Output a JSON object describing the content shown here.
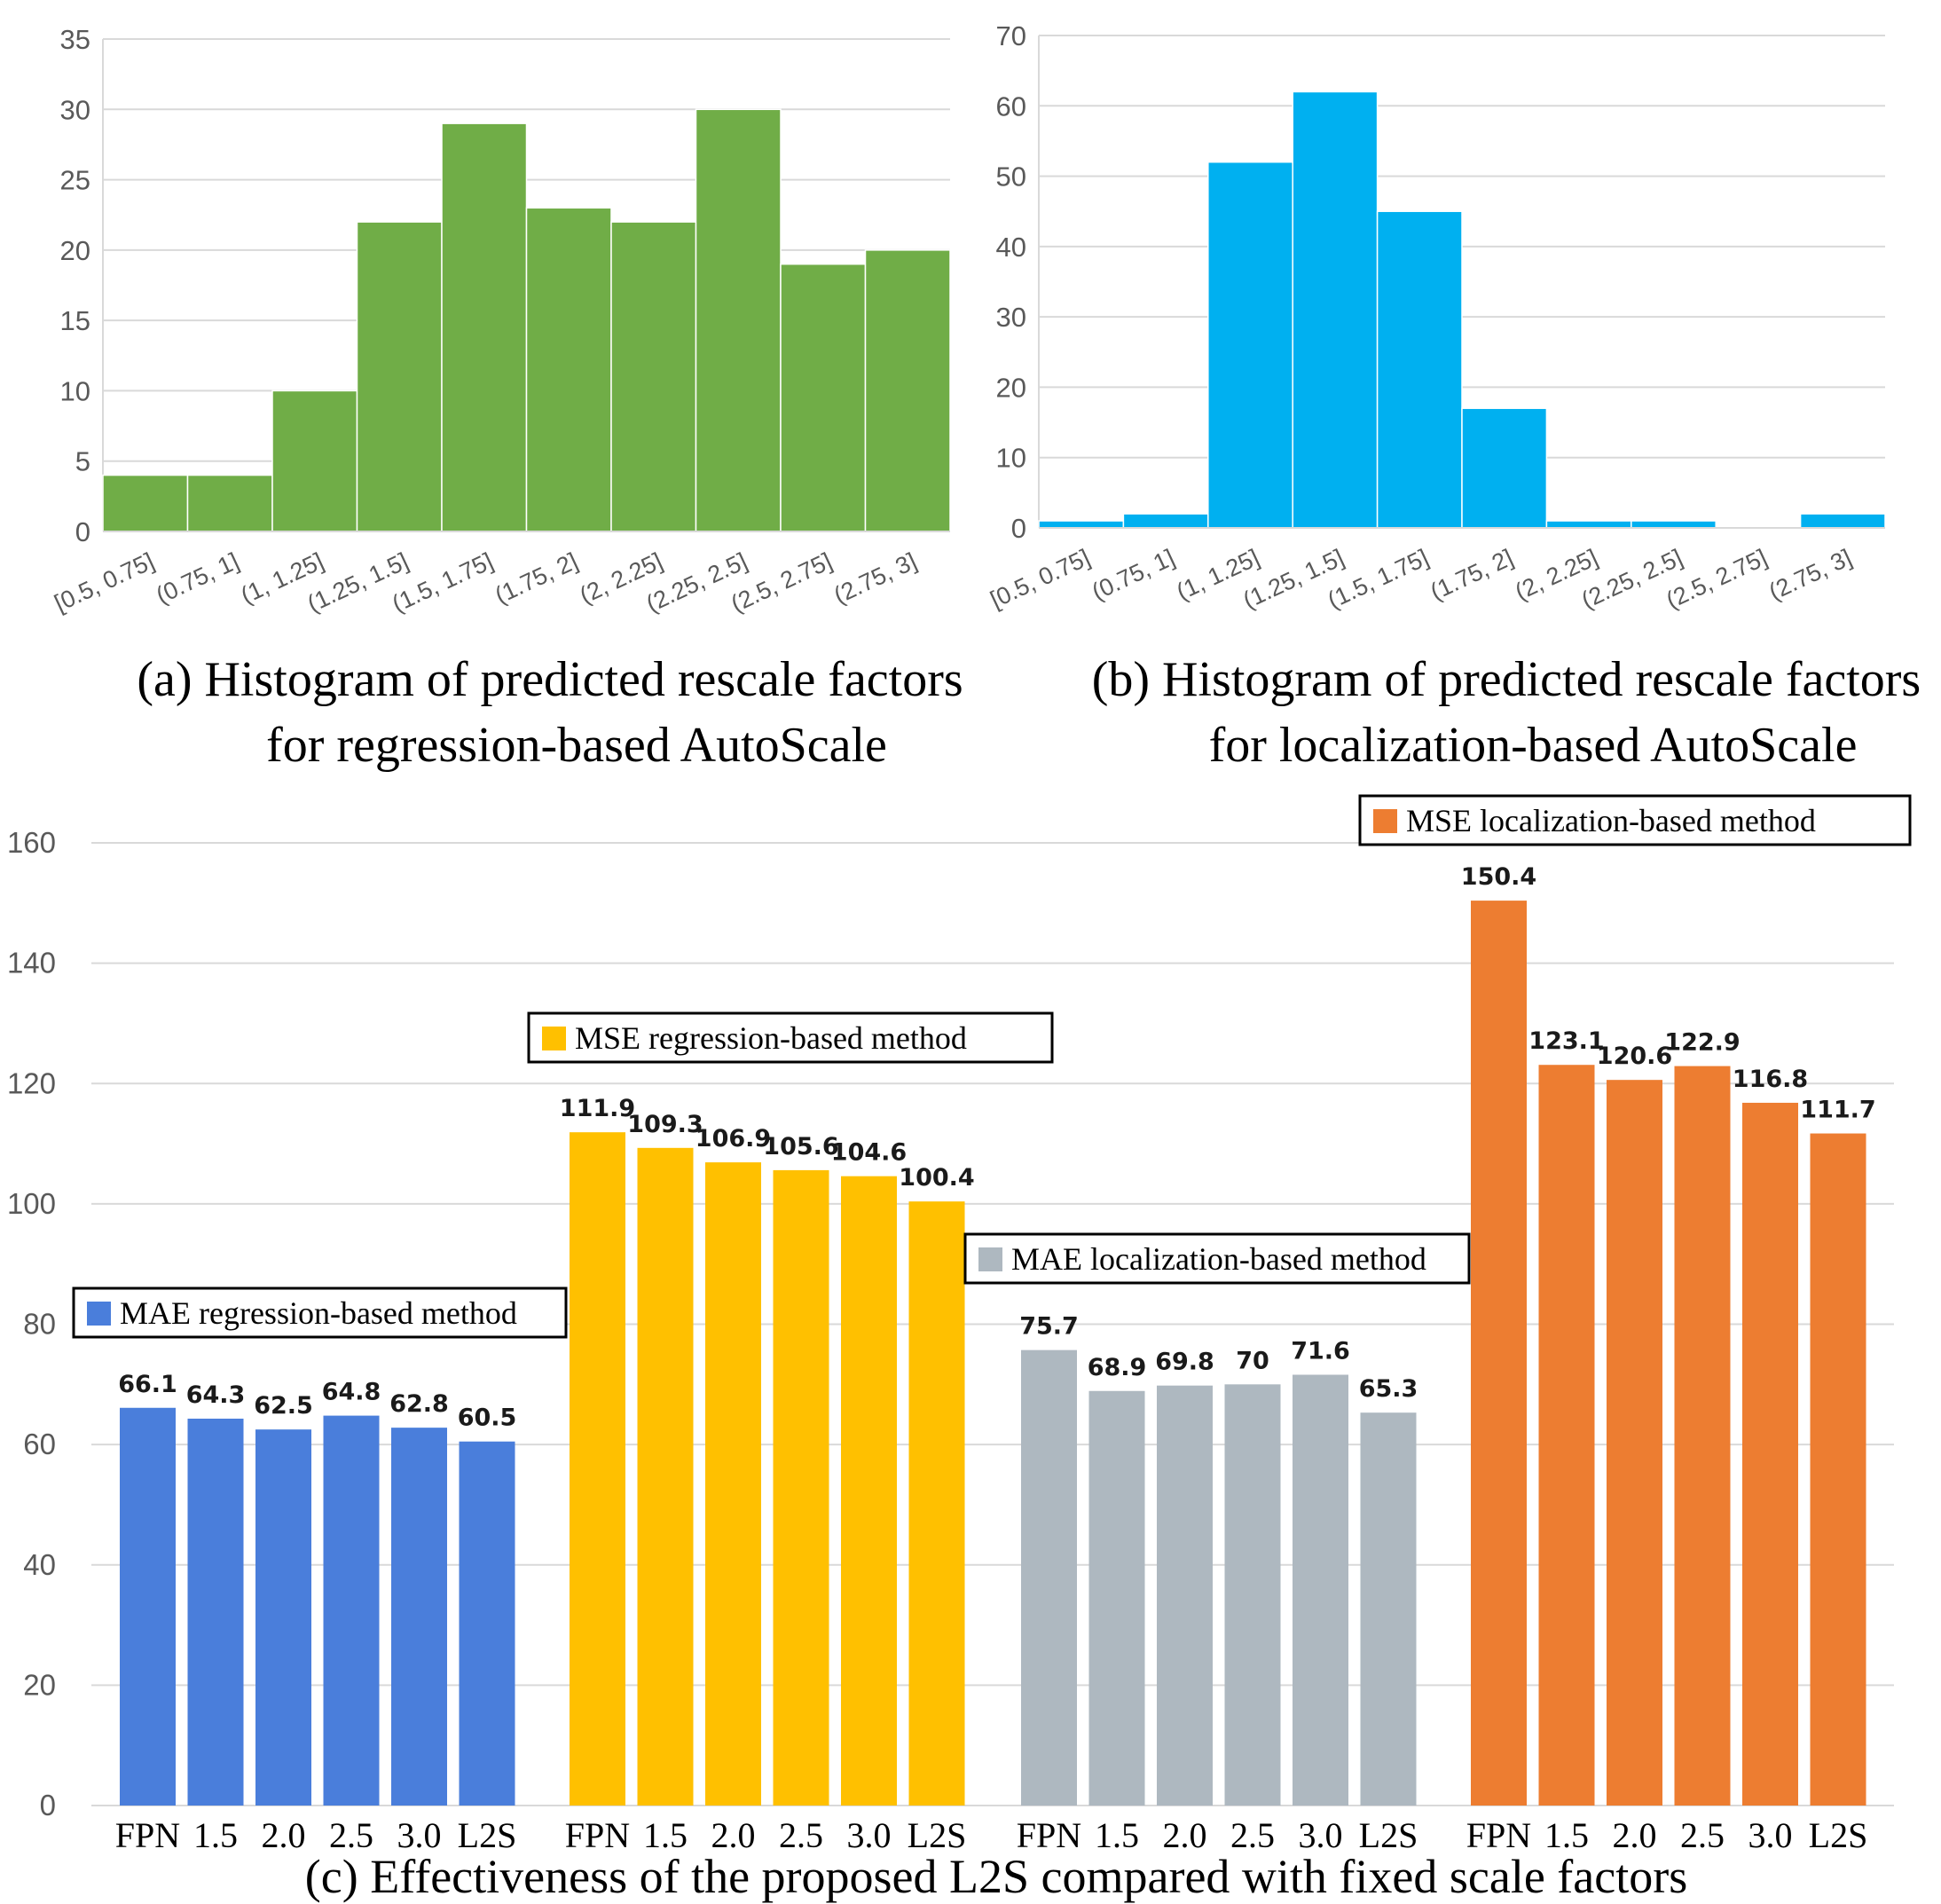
{
  "chart_data": [
    {
      "id": "a",
      "type": "bar",
      "caption": [
        "(a) Histogram of predicted rescale factors",
        "for regression-based AutoScale"
      ],
      "categories": [
        "[0.5, 0.75]",
        "(0.75, 1]",
        "(1, 1.25]",
        "(1.25, 1.5]",
        "(1.5, 1.75]",
        "(1.75, 2]",
        "(2, 2.25]",
        "(2.25, 2.5]",
        "(2.5, 2.75]",
        "(2.75, 3]"
      ],
      "values": [
        4,
        4,
        10,
        22,
        29,
        23,
        22,
        30,
        19,
        20
      ],
      "ylim": [
        0,
        35
      ],
      "yticks": [
        0,
        5,
        10,
        15,
        20,
        25,
        30,
        35
      ],
      "color": "#70AD47",
      "grid": true
    },
    {
      "id": "b",
      "type": "bar",
      "caption": [
        "(b) Histogram of predicted rescale factors",
        "for localization-based AutoScale"
      ],
      "categories": [
        "[0.5, 0.75]",
        "(0.75, 1]",
        "(1, 1.25]",
        "(1.25, 1.5]",
        "(1.5, 1.75]",
        "(1.75, 2]",
        "(2, 2.25]",
        "(2.25, 2.5]",
        "(2.5, 2.75]",
        "(2.75, 3]"
      ],
      "values": [
        1,
        2,
        52,
        62,
        45,
        17,
        1,
        1,
        0,
        2
      ],
      "ylim": [
        0,
        70
      ],
      "yticks": [
        0,
        10,
        20,
        30,
        40,
        50,
        60,
        70
      ],
      "color": "#00B0F0",
      "grid": true
    },
    {
      "id": "c",
      "type": "bar",
      "caption": "(c) Effectiveness of the proposed L2S compared with fixed scale factors",
      "ylim": [
        0,
        160
      ],
      "yticks": [
        0,
        20,
        40,
        60,
        80,
        100,
        120,
        140,
        160
      ],
      "grid": true,
      "categories": [
        "FPN",
        "1.5",
        "2.0",
        "2.5",
        "3.0",
        "L2S"
      ],
      "series": [
        {
          "name": "MAE regression-based method",
          "color": "#4A7EDB",
          "values": [
            66.1,
            64.3,
            62.5,
            64.8,
            62.8,
            60.5
          ],
          "labels": [
            "66.1",
            "64.3",
            "62.5",
            "64.8",
            "62.8",
            "60.5"
          ]
        },
        {
          "name": "MSE regression-based method",
          "color": "#FFC000",
          "values": [
            111.9,
            109.3,
            106.9,
            105.6,
            104.6,
            100.4
          ],
          "labels": [
            "111.9",
            "109.3",
            "106.9",
            "105.6",
            "104.6",
            "100.4"
          ]
        },
        {
          "name": "MAE localization-based method",
          "color": "#AEB8C0",
          "values": [
            75.7,
            68.9,
            69.8,
            70,
            71.6,
            65.3
          ],
          "labels": [
            "75.7",
            "68.9",
            "69.8",
            "70",
            "71.6",
            "65.3"
          ]
        },
        {
          "name": "MSE localization-based method",
          "color": "#ED7D31",
          "values": [
            150.4,
            123.1,
            120.6,
            122.9,
            116.8,
            111.7
          ],
          "labels": [
            "150.4",
            "123.1",
            "120.6",
            "122.9",
            "116.8",
            "111.7"
          ]
        }
      ]
    }
  ]
}
